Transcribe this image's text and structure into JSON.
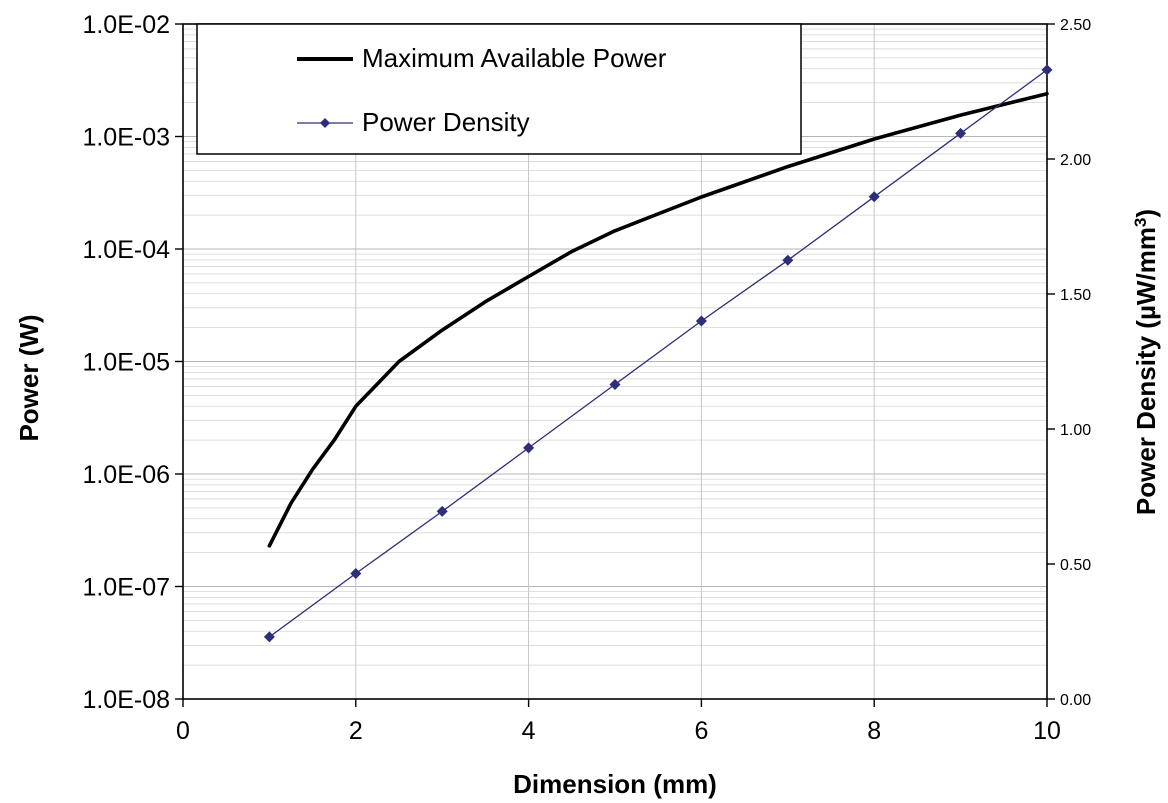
{
  "chart_data": {
    "type": "line",
    "title": "",
    "xlabel": "Dimension (mm)",
    "ylabel": "Power (W)",
    "y2label": "Power Density (µW/mm",
    "y2label_sup": "3",
    "y2label_close": ")",
    "xlim": [
      0,
      10
    ],
    "ylim": [
      1e-08,
      0.01
    ],
    "y_scale": "log",
    "y2lim": [
      0,
      2.5
    ],
    "x_ticks": [
      "0",
      "2",
      "4",
      "6",
      "8",
      "10"
    ],
    "y_ticks": [
      "1.0E-08",
      "1.0E-07",
      "1.0E-06",
      "1.0E-05",
      "1.0E-04",
      "1.0E-03",
      "1.0E-02"
    ],
    "y2_ticks": [
      "0.00",
      "0.50",
      "1.00",
      "1.50",
      "2.00",
      "2.50"
    ],
    "grid": true,
    "legend_position": "top-left",
    "series": [
      {
        "name": "Maximum Available Power",
        "axis": "left",
        "color": "#000000",
        "marker": "none",
        "x": [
          1,
          1.25,
          1.5,
          1.75,
          2,
          2.5,
          3,
          3.5,
          4,
          4.5,
          5,
          6,
          7,
          8,
          9,
          10
        ],
        "y": [
          2.3e-07,
          5.5e-07,
          1.1e-06,
          2e-06,
          4e-06,
          1e-05,
          1.9e-05,
          3.4e-05,
          5.7e-05,
          9.5e-05,
          0.000145,
          0.00029,
          0.00054,
          0.00095,
          0.00155,
          0.0024
        ]
      },
      {
        "name": "Power Density",
        "axis": "right",
        "color": "#2e2e7a",
        "marker": "diamond",
        "x": [
          1,
          2,
          3,
          4,
          5,
          6,
          7,
          8,
          9,
          10
        ],
        "y": [
          0.23,
          0.465,
          0.695,
          0.93,
          1.165,
          1.4,
          1.625,
          1.86,
          2.095,
          2.33
        ]
      }
    ]
  }
}
